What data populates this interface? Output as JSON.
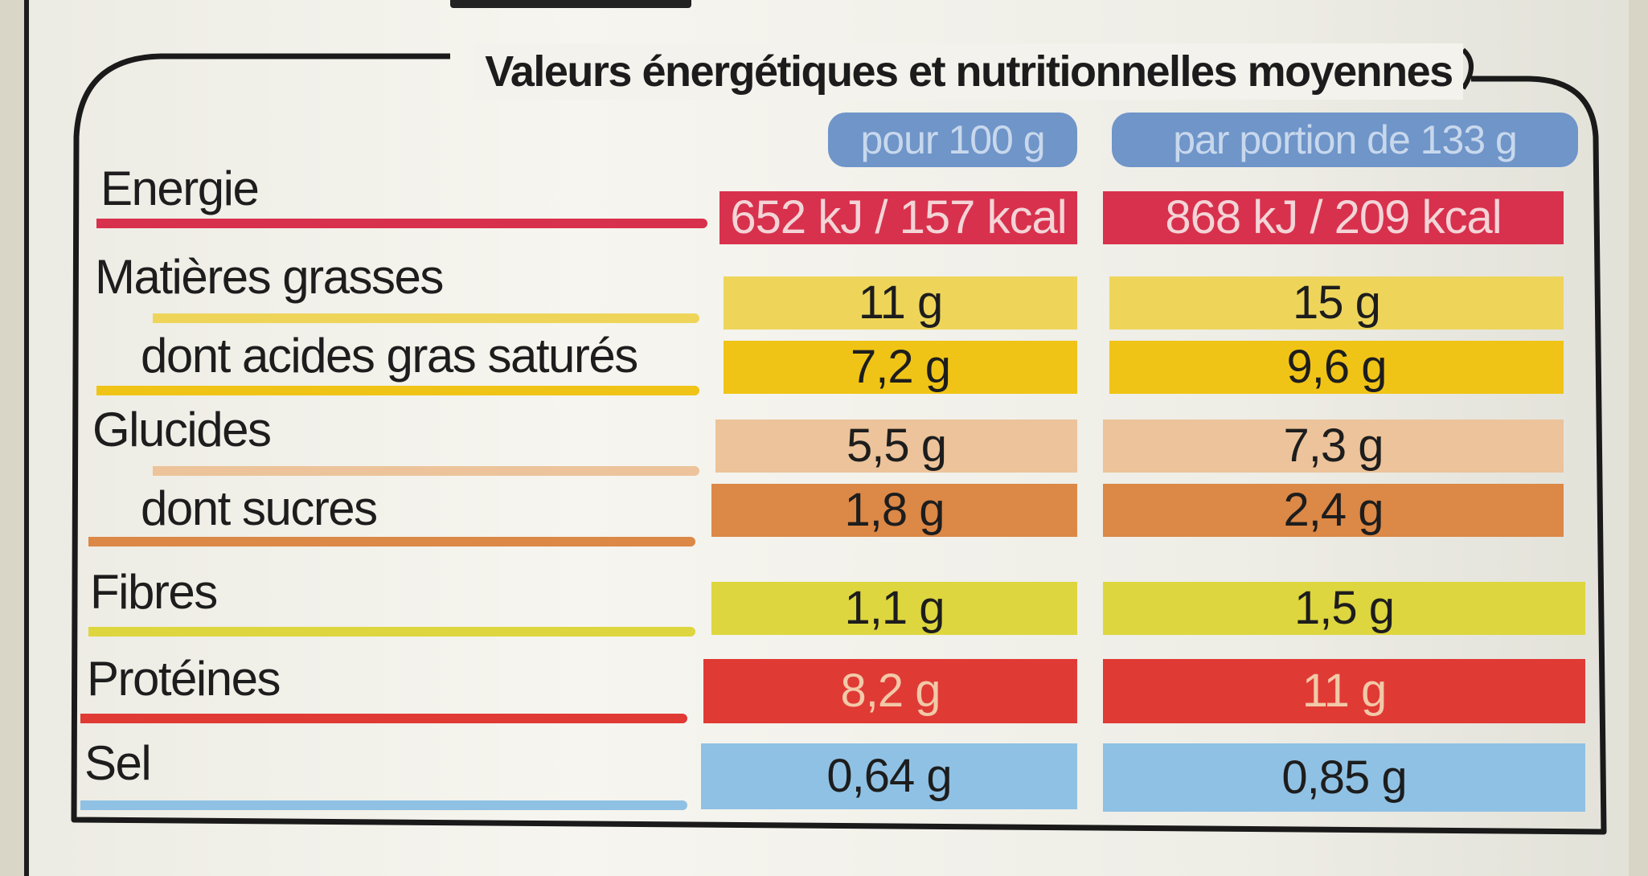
{
  "title": "Valeurs énergétiques et nutritionnelles moyennes",
  "columns": [
    "pour 100 g",
    "par portion de 133 g"
  ],
  "rows": [
    {
      "label": "Energie",
      "per100": "652 kJ / 157 kcal",
      "portion": "868 kJ / 209 kcal",
      "color": "#d8314d",
      "text_color": "#f3d4d7"
    },
    {
      "label": "Matières grasses",
      "per100": "11 g",
      "portion": "15 g",
      "color": "#eed55a",
      "text_color": "#1d1d1d"
    },
    {
      "label": "dont acides gras saturés",
      "per100": "7,2 g",
      "portion": "9,6 g",
      "color": "#f0c416",
      "text_color": "#1d1d1d"
    },
    {
      "label": "Glucides",
      "per100": "5,5 g",
      "portion": "7,3 g",
      "color": "#ecc39a",
      "text_color": "#1d1d1d"
    },
    {
      "label": "dont sucres",
      "per100": "1,8 g",
      "portion": "2,4 g",
      "color": "#dc8846",
      "text_color": "#1d1d1d"
    },
    {
      "label": "Fibres",
      "per100": "1,1 g",
      "portion": "1,5 g",
      "color": "#ddd63e",
      "text_color": "#1d1d1d"
    },
    {
      "label": "Protéines",
      "per100": "8,2 g",
      "portion": "11 g",
      "color": "#e03a35",
      "text_color": "#f2c9a8"
    },
    {
      "label": "Sel",
      "per100": "0,64 g",
      "portion": "0,85 g",
      "color": "#8fc1e4",
      "text_color": "#1d1d1d"
    }
  ]
}
